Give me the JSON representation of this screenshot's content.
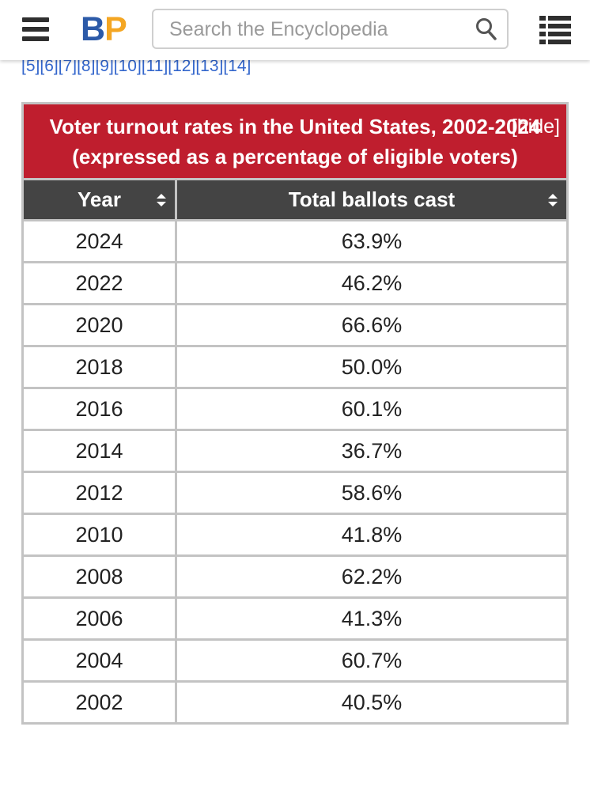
{
  "header": {
    "logo": {
      "b": "B",
      "p": "P"
    },
    "search": {
      "placeholder": "Search the Encyclopedia",
      "value": ""
    }
  },
  "refs": [
    "[5]",
    "[6]",
    "[7]",
    "[8]",
    "[9]",
    "[10]",
    "[11]",
    "[12]",
    "[13]",
    "[14]"
  ],
  "table": {
    "caption": "Voter turnout rates in the United States, 2002-2024 (expressed as a percentage of eligible voters)",
    "hide_label": "[hide]",
    "columns": [
      "Year",
      "Total ballots cast"
    ],
    "rows": [
      {
        "year": "2024",
        "value": "63.9%"
      },
      {
        "year": "2022",
        "value": "46.2%"
      },
      {
        "year": "2020",
        "value": "66.6%"
      },
      {
        "year": "2018",
        "value": "50.0%"
      },
      {
        "year": "2016",
        "value": "60.1%"
      },
      {
        "year": "2014",
        "value": "36.7%"
      },
      {
        "year": "2012",
        "value": "58.6%"
      },
      {
        "year": "2010",
        "value": "41.8%"
      },
      {
        "year": "2008",
        "value": "62.2%"
      },
      {
        "year": "2006",
        "value": "41.3%"
      },
      {
        "year": "2004",
        "value": "60.7%"
      },
      {
        "year": "2002",
        "value": "40.5%"
      }
    ]
  },
  "colors": {
    "caption_bg": "#bf1e2e",
    "header_bg": "#444444",
    "logo_b": "#2c5aa8",
    "logo_p": "#f4a623",
    "link": "#3366cc"
  }
}
